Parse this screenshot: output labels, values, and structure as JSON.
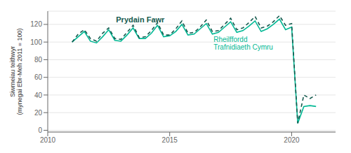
{
  "chart_data": {
    "type": "line",
    "ylabel": "Siwrneiau teithwyr\n(mynegai Ebr-Meh 2011 = 100)",
    "x": [
      2011.0,
      2011.25,
      2011.5,
      2011.75,
      2012.0,
      2012.25,
      2012.5,
      2012.75,
      2013.0,
      2013.25,
      2013.5,
      2013.75,
      2014.0,
      2014.25,
      2014.5,
      2014.75,
      2015.0,
      2015.25,
      2015.5,
      2015.75,
      2016.0,
      2016.25,
      2016.5,
      2016.75,
      2017.0,
      2017.25,
      2017.5,
      2017.75,
      2018.0,
      2018.25,
      2018.5,
      2018.75,
      2019.0,
      2019.25,
      2019.5,
      2019.75,
      2020.0,
      2020.25,
      2020.5,
      2020.75,
      2021.0
    ],
    "xlim": [
      2010.0,
      2021.8
    ],
    "xticks": [
      2010,
      2015,
      2020
    ],
    "ylim": [
      -2,
      135
    ],
    "yticks": [
      0,
      20,
      40,
      60,
      80,
      100,
      120
    ],
    "grid": true,
    "series": [
      {
        "name": "Rheilffordd\nTrafnidiaeth Cymru",
        "color": "#00b894",
        "line_style": "solid",
        "values": [
          100,
          106,
          112,
          101,
          99,
          106,
          114,
          102,
          101,
          108,
          116,
          104,
          104,
          110,
          119,
          106,
          107,
          112,
          120,
          108,
          109,
          115,
          121,
          109,
          111,
          117,
          123,
          111,
          113,
          118,
          124,
          112,
          115,
          120,
          126,
          114,
          117,
          8,
          27,
          28,
          27
        ]
      },
      {
        "name": "Prydain Fawr",
        "color": "#145a4e",
        "line_style": "dashed",
        "values": [
          100,
          109,
          114,
          104,
          101,
          110,
          116,
          104,
          103,
          111,
          119,
          105,
          106,
          113,
          122,
          108,
          108,
          115,
          124,
          110,
          111,
          117,
          125,
          112,
          113,
          120,
          127,
          114,
          116,
          122,
          129,
          116,
          118,
          123,
          130,
          119,
          121,
          8,
          40,
          36,
          40
        ]
      }
    ],
    "annotations": [
      {
        "text": "Prydain Fawr",
        "x": 2012.8,
        "y": 131,
        "color": "#145a4e"
      },
      {
        "text": "Rheilffordd\nTrafnidiaeth Cymru",
        "x": 2016.8,
        "y": 108,
        "color": "#00b894"
      }
    ]
  }
}
